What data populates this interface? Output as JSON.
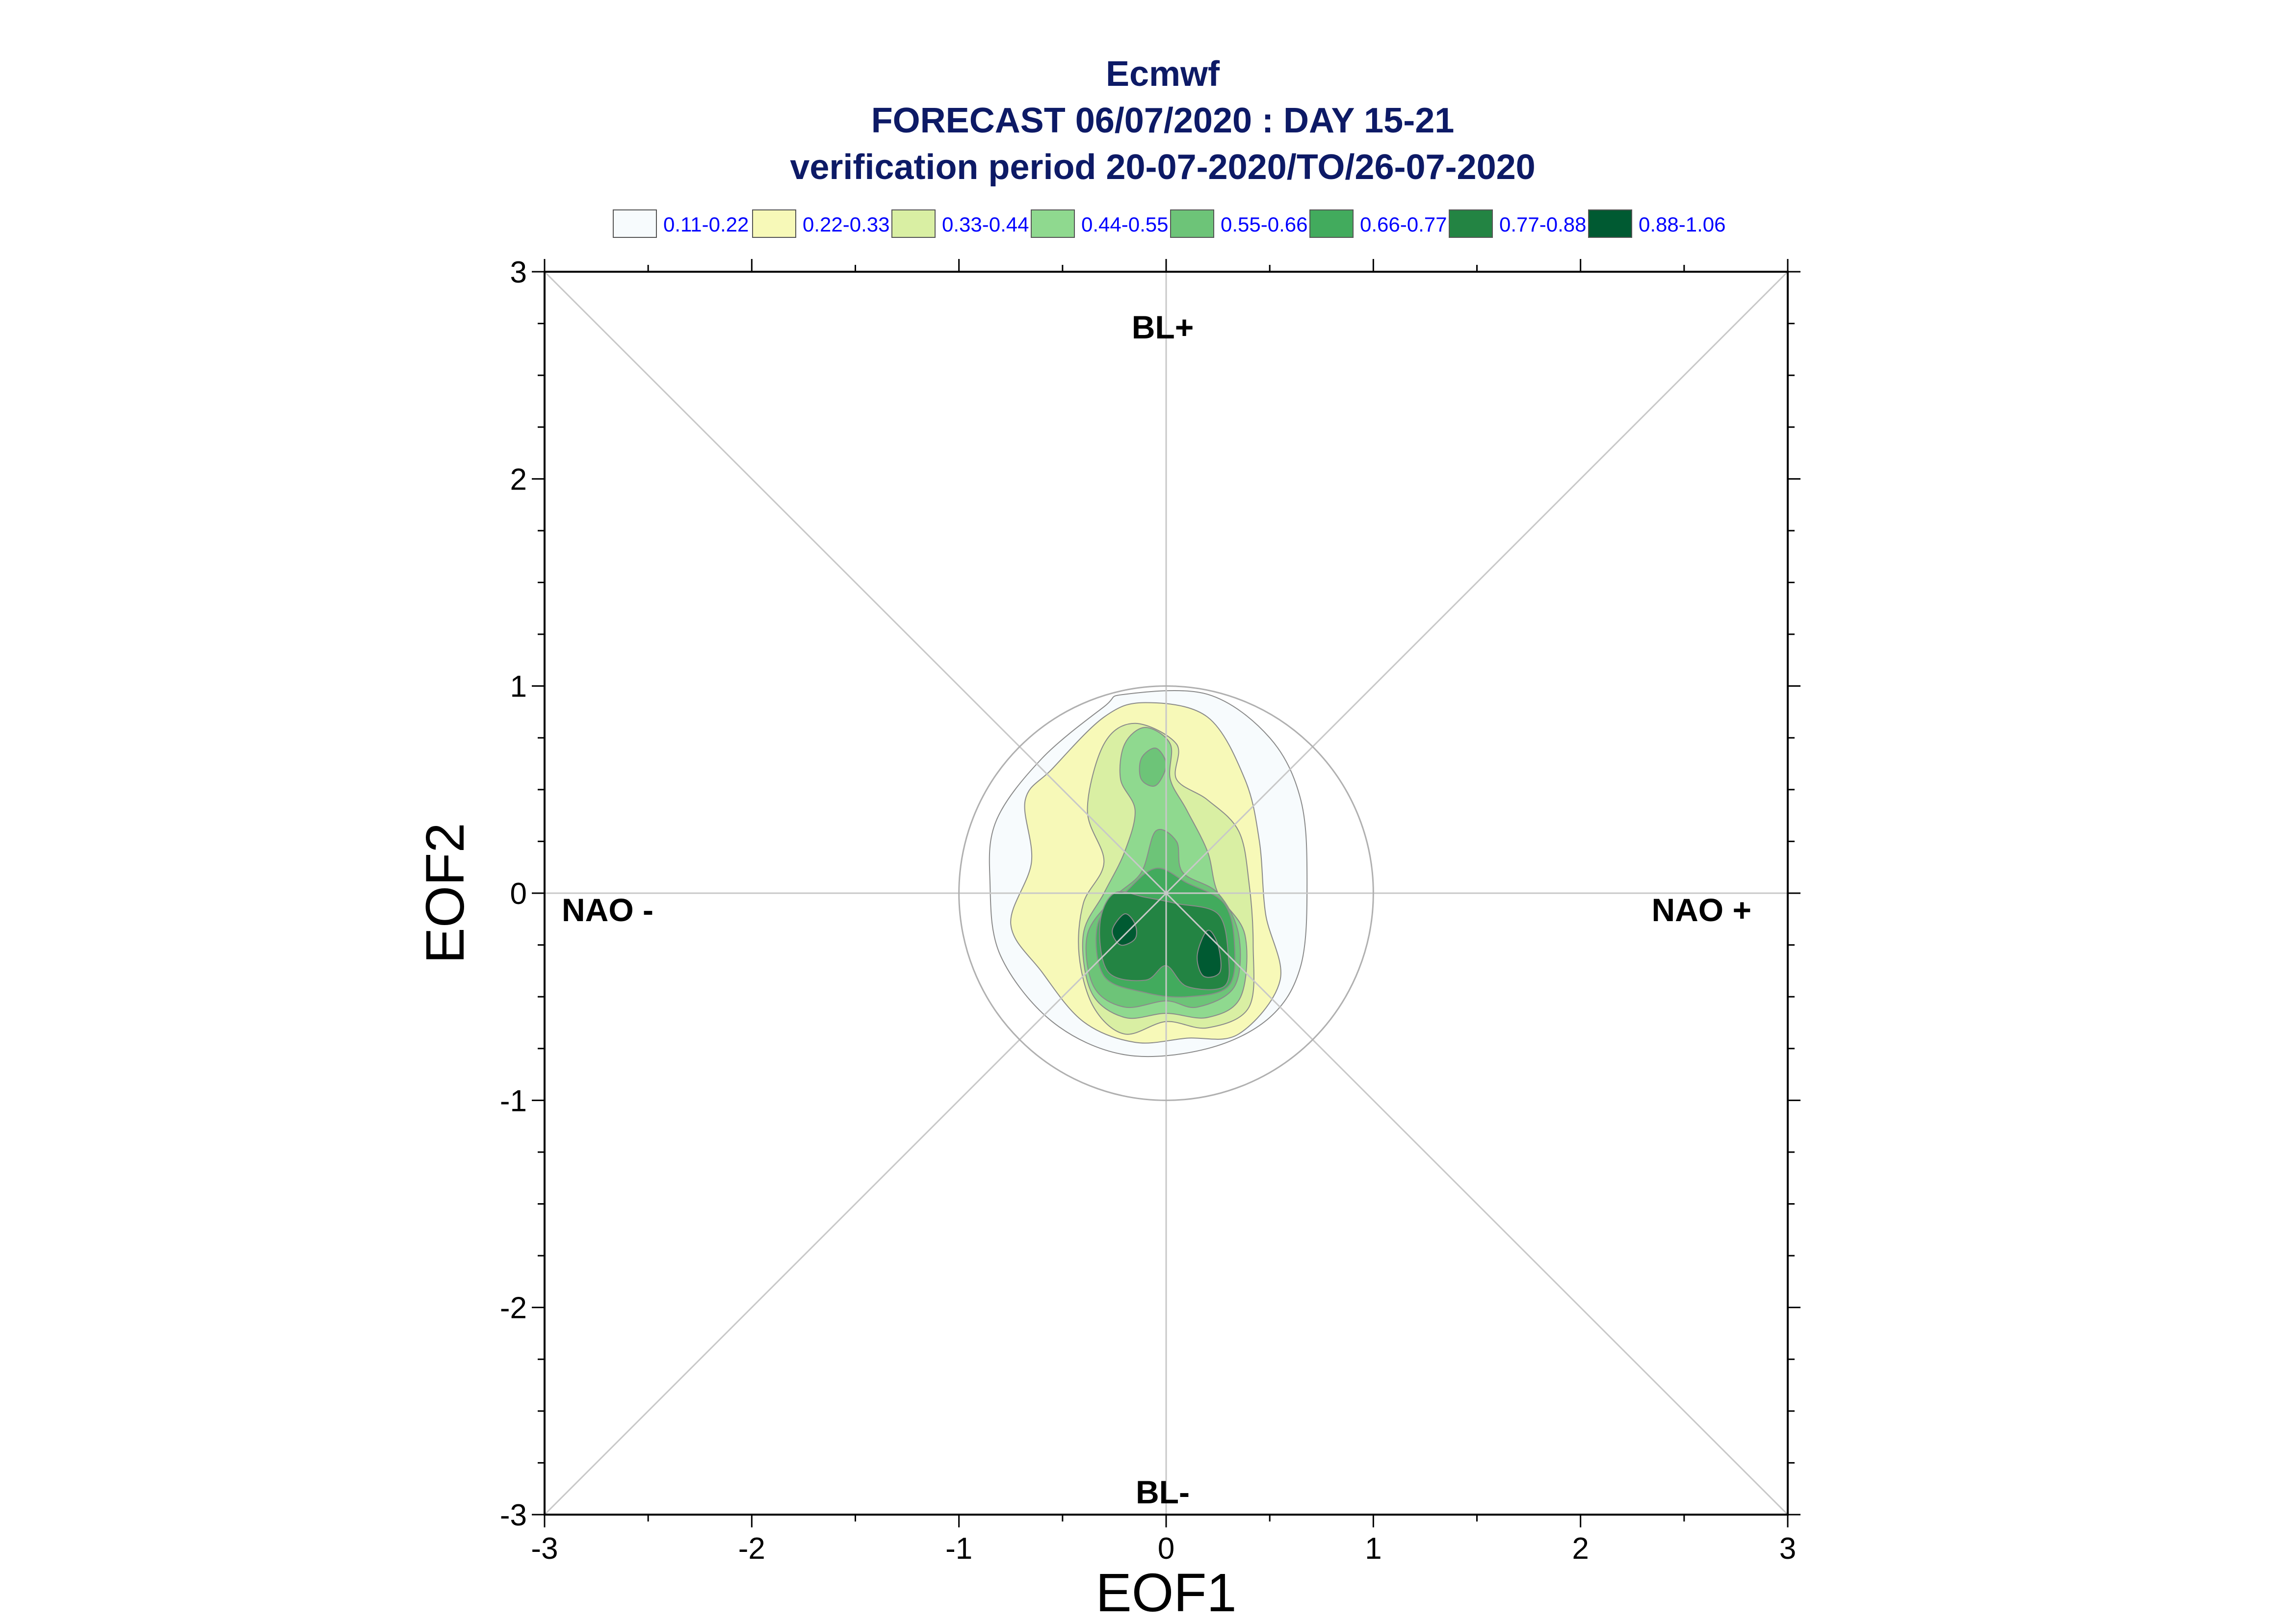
{
  "chart_data": {
    "type": "contour",
    "title": "Ecmwf",
    "subtitle_1": "FORECAST 06/07/2020 : DAY 15-21",
    "subtitle_2": "verification period 20-07-2020/TO/26-07-2020",
    "xlabel": "EOF1",
    "ylabel": "EOF2",
    "xlim": [
      -3,
      3
    ],
    "ylim": [
      -3,
      3
    ],
    "xticks": [
      "-3",
      "-2",
      "-1",
      "0",
      "1",
      "2",
      "3"
    ],
    "yticks": [
      "-3",
      "-2",
      "-1",
      "0",
      "1",
      "2",
      "3"
    ],
    "legend_position": "top",
    "legend": [
      {
        "label": "0.11-0.22",
        "color": "#f7fbfd"
      },
      {
        "label": "0.22-0.33",
        "color": "#f7f9b8"
      },
      {
        "label": "0.33-0.44",
        "color": "#d9efa3"
      },
      {
        "label": "0.44-0.55",
        "color": "#8fd98f"
      },
      {
        "label": "0.55-0.66",
        "color": "#6dc478"
      },
      {
        "label": "0.66-0.77",
        "color": "#42ab5d"
      },
      {
        "label": "0.77-0.88",
        "color": "#238443"
      },
      {
        "label": "0.88-1.06",
        "color": "#005a32"
      }
    ],
    "regime_labels": {
      "top": "BL+",
      "bottom": "BL-",
      "left": "NAO -",
      "right": "NAO +"
    },
    "unit_circle_radius": 1,
    "density_levels": [
      {
        "level": 0.11,
        "color": "#f7fbfd",
        "boundary": [
          [
            -0.2,
            0.96
          ],
          [
            0.2,
            0.96
          ],
          [
            0.5,
            0.75
          ],
          [
            0.65,
            0.45
          ],
          [
            0.68,
            0.05
          ],
          [
            0.65,
            -0.35
          ],
          [
            0.5,
            -0.6
          ],
          [
            0.2,
            -0.75
          ],
          [
            -0.2,
            -0.78
          ],
          [
            -0.55,
            -0.62
          ],
          [
            -0.8,
            -0.3
          ],
          [
            -0.85,
            0.05
          ],
          [
            -0.82,
            0.35
          ],
          [
            -0.6,
            0.65
          ],
          [
            -0.3,
            0.9
          ]
        ]
      },
      {
        "level": 0.22,
        "color": "#f7f9b8",
        "boundary": [
          [
            -0.3,
            0.85
          ],
          [
            -0.1,
            0.92
          ],
          [
            0.2,
            0.85
          ],
          [
            0.38,
            0.55
          ],
          [
            0.45,
            0.25
          ],
          [
            0.48,
            -0.1
          ],
          [
            0.55,
            -0.42
          ],
          [
            0.35,
            -0.68
          ],
          [
            0.1,
            -0.7
          ],
          [
            -0.15,
            -0.72
          ],
          [
            -0.4,
            -0.62
          ],
          [
            -0.6,
            -0.38
          ],
          [
            -0.75,
            -0.15
          ],
          [
            -0.65,
            0.15
          ],
          [
            -0.68,
            0.45
          ],
          [
            -0.55,
            0.6
          ]
        ]
      },
      {
        "level": 0.33,
        "color": "#d9efa3",
        "boundary": [
          [
            -0.3,
            0.72
          ],
          [
            -0.15,
            0.82
          ],
          [
            0.05,
            0.72
          ],
          [
            0.05,
            0.55
          ],
          [
            0.2,
            0.45
          ],
          [
            0.35,
            0.3
          ],
          [
            0.4,
            0.05
          ],
          [
            0.42,
            -0.25
          ],
          [
            0.4,
            -0.55
          ],
          [
            0.2,
            -0.65
          ],
          [
            0.0,
            -0.62
          ],
          [
            -0.2,
            -0.68
          ],
          [
            -0.35,
            -0.55
          ],
          [
            -0.42,
            -0.3
          ],
          [
            -0.4,
            -0.05
          ],
          [
            -0.3,
            0.15
          ],
          [
            -0.38,
            0.4
          ]
        ]
      },
      {
        "level": 0.44,
        "color": "#8fd98f",
        "boundary": [
          [
            -0.2,
            0.72
          ],
          [
            -0.1,
            0.8
          ],
          [
            0.02,
            0.72
          ],
          [
            0.02,
            0.55
          ],
          [
            0.1,
            0.4
          ],
          [
            0.2,
            0.2
          ],
          [
            0.25,
            0.0
          ],
          [
            0.38,
            -0.2
          ],
          [
            0.36,
            -0.5
          ],
          [
            0.2,
            -0.6
          ],
          [
            0.0,
            -0.58
          ],
          [
            -0.2,
            -0.6
          ],
          [
            -0.36,
            -0.48
          ],
          [
            -0.4,
            -0.2
          ],
          [
            -0.3,
            0.0
          ],
          [
            -0.2,
            0.2
          ],
          [
            -0.15,
            0.4
          ],
          [
            -0.22,
            0.55
          ]
        ]
      },
      {
        "level": 0.55,
        "color": "#6dc478",
        "boundary": [
          [
            -0.05,
            0.3
          ],
          [
            0.05,
            0.25
          ],
          [
            0.08,
            0.1
          ],
          [
            0.25,
            0.0
          ],
          [
            0.35,
            -0.2
          ],
          [
            0.33,
            -0.45
          ],
          [
            0.15,
            -0.55
          ],
          [
            0.0,
            -0.52
          ],
          [
            -0.2,
            -0.55
          ],
          [
            -0.35,
            -0.45
          ],
          [
            -0.38,
            -0.2
          ],
          [
            -0.25,
            -0.02
          ],
          [
            -0.12,
            0.1
          ]
        ]
      },
      {
        "level": 0.66,
        "color": "#42ab5d",
        "boundary": [
          [
            -0.05,
            0.12
          ],
          [
            0.1,
            0.05
          ],
          [
            0.28,
            -0.05
          ],
          [
            0.33,
            -0.25
          ],
          [
            0.3,
            -0.45
          ],
          [
            0.1,
            -0.5
          ],
          [
            -0.1,
            -0.48
          ],
          [
            -0.3,
            -0.4
          ],
          [
            -0.33,
            -0.15
          ],
          [
            -0.2,
            0.0
          ]
        ]
      },
      {
        "level": 0.77,
        "color": "#238443",
        "boundary": [
          [
            -0.25,
            0.0
          ],
          [
            -0.1,
            -0.02
          ],
          [
            0.05,
            -0.05
          ],
          [
            0.25,
            -0.1
          ],
          [
            0.3,
            -0.3
          ],
          [
            0.28,
            -0.45
          ],
          [
            0.1,
            -0.45
          ],
          [
            0.0,
            -0.35
          ],
          [
            -0.1,
            -0.42
          ],
          [
            -0.28,
            -0.38
          ],
          [
            -0.32,
            -0.15
          ]
        ]
      },
      {
        "level": 0.88,
        "color": "#005a32",
        "boundary": [
          [
            -0.2,
            -0.1
          ],
          [
            -0.15,
            -0.15
          ],
          [
            -0.15,
            -0.22
          ],
          [
            -0.22,
            -0.25
          ],
          [
            -0.26,
            -0.18
          ]
        ]
      },
      {
        "level": 0.88,
        "color": "#005a32",
        "boundary": [
          [
            0.2,
            -0.18
          ],
          [
            0.25,
            -0.25
          ],
          [
            0.26,
            -0.38
          ],
          [
            0.18,
            -0.4
          ],
          [
            0.15,
            -0.3
          ]
        ]
      },
      {
        "level": 0.55,
        "color": "#6dc478",
        "boundary": [
          [
            -0.12,
            0.65
          ],
          [
            -0.05,
            0.7
          ],
          [
            0.0,
            0.62
          ],
          [
            -0.05,
            0.52
          ],
          [
            -0.12,
            0.55
          ]
        ]
      }
    ]
  }
}
